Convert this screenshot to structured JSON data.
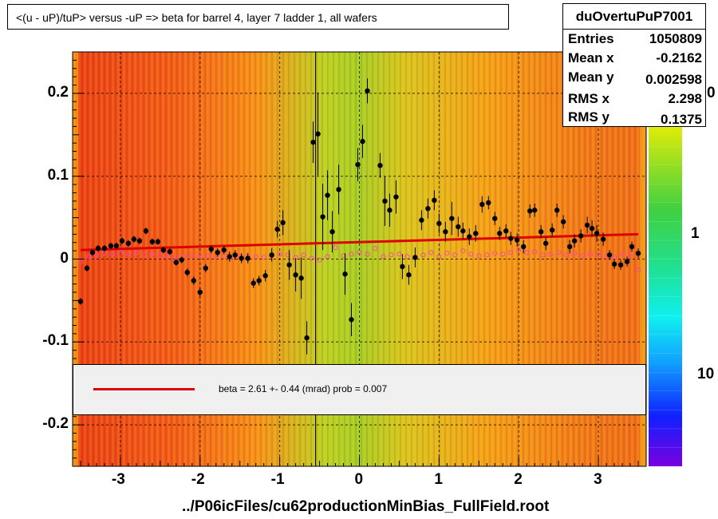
{
  "title": "<(u - uP)/tuP> versus  -uP => beta for barrel 4, layer 7 ladder 1, all wafers",
  "stats": {
    "name": "duOvertuPuP7001",
    "rows": [
      {
        "key": "Entries",
        "value": "1050809"
      },
      {
        "key": "Mean x",
        "value": "-0.2162"
      },
      {
        "key": "Mean y",
        "value": "0.002598"
      },
      {
        "key": "RMS x",
        "value": "2.298"
      },
      {
        "key": "RMS y",
        "value": "0.1375"
      }
    ]
  },
  "legend": {
    "text": "beta =    2.61 +-  0.44 (mrad) prob = 0.007",
    "line_color": "#dd0000"
  },
  "xlabel": "../P06icFiles/cu62productionMinBias_FullField.root",
  "zaxis": {
    "labels": [
      "1",
      "10"
    ],
    "partial_label": "0"
  },
  "colors": {
    "fit_line": "#dd0000",
    "profile_points": "#000000",
    "open_markers": "#ff44aa"
  },
  "chart_data": {
    "type": "scatter",
    "xlim": [
      -3.6,
      3.6
    ],
    "ylim": [
      -0.25,
      0.25
    ],
    "x_ticks": [
      "-3",
      "-2",
      "-1",
      "0",
      "1",
      "2",
      "3"
    ],
    "y_ticks": [
      "-0.2",
      "-0.1",
      "0",
      "0.1",
      "0.2"
    ],
    "grid": true,
    "z_scale": "log",
    "fit": {
      "x": [
        -3.5,
        3.5
      ],
      "y": [
        0.011,
        0.03
      ]
    },
    "series": [
      {
        "marker": "filled-circle-errorbar",
        "points": [
          {
            "x": -3.5,
            "y": -0.051,
            "e": 0.004
          },
          {
            "x": -3.42,
            "y": -0.011,
            "e": 0.004
          },
          {
            "x": -3.35,
            "y": 0.008,
            "e": 0.004
          },
          {
            "x": -3.28,
            "y": 0.013,
            "e": 0.004
          },
          {
            "x": -3.2,
            "y": 0.013,
            "e": 0.004
          },
          {
            "x": -3.12,
            "y": 0.016,
            "e": 0.004
          },
          {
            "x": -3.05,
            "y": 0.016,
            "e": 0.004
          },
          {
            "x": -2.98,
            "y": 0.022,
            "e": 0.004
          },
          {
            "x": -2.9,
            "y": 0.019,
            "e": 0.004
          },
          {
            "x": -2.83,
            "y": 0.024,
            "e": 0.004
          },
          {
            "x": -2.76,
            "y": 0.022,
            "e": 0.004
          },
          {
            "x": -2.68,
            "y": 0.034,
            "e": 0.004
          },
          {
            "x": -2.6,
            "y": 0.021,
            "e": 0.004
          },
          {
            "x": -2.53,
            "y": 0.021,
            "e": 0.004
          },
          {
            "x": -2.46,
            "y": 0.011,
            "e": 0.004
          },
          {
            "x": -2.38,
            "y": 0.009,
            "e": 0.004
          },
          {
            "x": -2.3,
            "y": -0.004,
            "e": 0.004
          },
          {
            "x": -2.23,
            "y": -0.001,
            "e": 0.004
          },
          {
            "x": -2.16,
            "y": -0.016,
            "e": 0.005
          },
          {
            "x": -2.08,
            "y": -0.026,
            "e": 0.005
          },
          {
            "x": -2.0,
            "y": -0.04,
            "e": 0.005
          },
          {
            "x": -1.93,
            "y": -0.011,
            "e": 0.005
          },
          {
            "x": -1.86,
            "y": 0.012,
            "e": 0.005
          },
          {
            "x": -1.78,
            "y": 0.008,
            "e": 0.005
          },
          {
            "x": -1.7,
            "y": 0.011,
            "e": 0.005
          },
          {
            "x": -1.63,
            "y": 0.003,
            "e": 0.006
          },
          {
            "x": -1.56,
            "y": 0.005,
            "e": 0.006
          },
          {
            "x": -1.48,
            "y": 0.001,
            "e": 0.006
          },
          {
            "x": -1.4,
            "y": 0.001,
            "e": 0.006
          },
          {
            "x": -1.33,
            "y": -0.029,
            "e": 0.006
          },
          {
            "x": -1.26,
            "y": -0.026,
            "e": 0.006
          },
          {
            "x": -1.18,
            "y": -0.02,
            "e": 0.007
          },
          {
            "x": -1.1,
            "y": 0.005,
            "e": 0.008
          },
          {
            "x": -1.03,
            "y": 0.036,
            "e": 0.01
          },
          {
            "x": -0.96,
            "y": 0.044,
            "e": 0.015
          },
          {
            "x": -0.88,
            "y": -0.007,
            "e": 0.018
          },
          {
            "x": -0.8,
            "y": -0.019,
            "e": 0.02
          },
          {
            "x": -0.73,
            "y": -0.023,
            "e": 0.025
          },
          {
            "x": -0.66,
            "y": -0.095,
            "e": 0.02
          },
          {
            "x": -0.58,
            "y": 0.141,
            "e": 0.025
          },
          {
            "x": -0.52,
            "y": 0.151,
            "e": 0.05
          },
          {
            "x": -0.46,
            "y": 0.051,
            "e": 0.04
          },
          {
            "x": -0.4,
            "y": 0.077,
            "e": 0.03
          },
          {
            "x": -0.34,
            "y": 0.033,
            "e": 0.025
          },
          {
            "x": -0.26,
            "y": 0.084,
            "e": 0.03
          },
          {
            "x": -0.18,
            "y": -0.018,
            "e": 0.025
          },
          {
            "x": -0.1,
            "y": -0.073,
            "e": 0.02
          },
          {
            "x": -0.02,
            "y": 0.114,
            "e": 0.02
          },
          {
            "x": 0.04,
            "y": 0.142,
            "e": 0.02
          },
          {
            "x": 0.1,
            "y": 0.203,
            "e": 0.015
          },
          {
            "x": 0.26,
            "y": 0.113,
            "e": 0.015
          },
          {
            "x": 0.32,
            "y": 0.07,
            "e": 0.03
          },
          {
            "x": 0.38,
            "y": 0.059,
            "e": 0.02
          },
          {
            "x": 0.46,
            "y": 0.075,
            "e": 0.02
          },
          {
            "x": 0.54,
            "y": -0.009,
            "e": 0.015
          },
          {
            "x": 0.62,
            "y": -0.019,
            "e": 0.012
          },
          {
            "x": 0.7,
            "y": 0.002,
            "e": 0.012
          },
          {
            "x": 0.78,
            "y": 0.047,
            "e": 0.012
          },
          {
            "x": 0.86,
            "y": 0.061,
            "e": 0.012
          },
          {
            "x": 0.94,
            "y": 0.071,
            "e": 0.012
          },
          {
            "x": 1.0,
            "y": 0.043,
            "e": 0.012
          },
          {
            "x": 1.08,
            "y": 0.033,
            "e": 0.012
          },
          {
            "x": 1.16,
            "y": 0.049,
            "e": 0.02
          },
          {
            "x": 1.24,
            "y": 0.039,
            "e": 0.012
          },
          {
            "x": 1.3,
            "y": 0.034,
            "e": 0.01
          },
          {
            "x": 1.38,
            "y": 0.027,
            "e": 0.01
          },
          {
            "x": 1.46,
            "y": 0.031,
            "e": 0.01
          },
          {
            "x": 1.54,
            "y": 0.066,
            "e": 0.01
          },
          {
            "x": 1.62,
            "y": 0.068,
            "e": 0.008
          },
          {
            "x": 1.7,
            "y": 0.049,
            "e": 0.008
          },
          {
            "x": 1.76,
            "y": 0.031,
            "e": 0.008
          },
          {
            "x": 1.84,
            "y": 0.034,
            "e": 0.008
          },
          {
            "x": 1.9,
            "y": 0.025,
            "e": 0.008
          },
          {
            "x": 1.98,
            "y": 0.023,
            "e": 0.008
          },
          {
            "x": 2.06,
            "y": 0.015,
            "e": 0.008
          },
          {
            "x": 2.14,
            "y": 0.058,
            "e": 0.008
          },
          {
            "x": 2.2,
            "y": 0.059,
            "e": 0.008
          },
          {
            "x": 2.28,
            "y": 0.033,
            "e": 0.008
          },
          {
            "x": 2.34,
            "y": 0.019,
            "e": 0.008
          },
          {
            "x": 2.42,
            "y": 0.035,
            "e": 0.008
          },
          {
            "x": 2.48,
            "y": 0.059,
            "e": 0.008
          },
          {
            "x": 2.56,
            "y": 0.045,
            "e": 0.008
          },
          {
            "x": 2.64,
            "y": 0.015,
            "e": 0.008
          },
          {
            "x": 2.7,
            "y": 0.022,
            "e": 0.008
          },
          {
            "x": 2.78,
            "y": 0.028,
            "e": 0.008
          },
          {
            "x": 2.86,
            "y": 0.041,
            "e": 0.01
          },
          {
            "x": 2.92,
            "y": 0.037,
            "e": 0.01
          },
          {
            "x": 2.98,
            "y": 0.031,
            "e": 0.01
          },
          {
            "x": 3.06,
            "y": 0.024,
            "e": 0.008
          },
          {
            "x": 3.14,
            "y": 0.005,
            "e": 0.006
          },
          {
            "x": 3.2,
            "y": -0.006,
            "e": 0.006
          },
          {
            "x": 3.28,
            "y": -0.007,
            "e": 0.006
          },
          {
            "x": 3.36,
            "y": -0.003,
            "e": 0.006
          },
          {
            "x": 3.42,
            "y": 0.015,
            "e": 0.006
          },
          {
            "x": 3.5,
            "y": 0.007,
            "e": 0.006
          }
        ]
      },
      {
        "marker": "open-circle",
        "points": [
          {
            "x": -3.5,
            "y": -0.003
          },
          {
            "x": -3.4,
            "y": 0.003
          },
          {
            "x": -3.3,
            "y": 0.005
          },
          {
            "x": -3.2,
            "y": 0.007
          },
          {
            "x": -3.1,
            "y": 0.006
          },
          {
            "x": -3.0,
            "y": 0.008
          },
          {
            "x": -2.9,
            "y": 0.006
          },
          {
            "x": -2.8,
            "y": 0.008
          },
          {
            "x": -2.7,
            "y": 0.005
          },
          {
            "x": -2.6,
            "y": 0.006
          },
          {
            "x": -2.5,
            "y": 0.004
          },
          {
            "x": -2.4,
            "y": 0.003
          },
          {
            "x": -2.3,
            "y": 0.002
          },
          {
            "x": -2.2,
            "y": 0.003
          },
          {
            "x": -2.1,
            "y": 0.004
          },
          {
            "x": -2.0,
            "y": 0.003
          },
          {
            "x": -1.9,
            "y": 0.004
          },
          {
            "x": -1.8,
            "y": 0.003
          },
          {
            "x": -1.7,
            "y": 0.004
          },
          {
            "x": -1.6,
            "y": 0.002
          },
          {
            "x": -1.5,
            "y": 0.003
          },
          {
            "x": -1.4,
            "y": 0.004
          },
          {
            "x": -1.3,
            "y": 0.003
          },
          {
            "x": -1.2,
            "y": 0.002
          },
          {
            "x": -1.1,
            "y": 0.004
          },
          {
            "x": -1.0,
            "y": 0.006
          },
          {
            "x": -0.9,
            "y": 0.005
          },
          {
            "x": -0.8,
            "y": 0.002
          },
          {
            "x": -0.7,
            "y": 0.005
          },
          {
            "x": -0.6,
            "y": 0.001
          },
          {
            "x": -0.5,
            "y": -0.001
          },
          {
            "x": -0.4,
            "y": 0.003
          },
          {
            "x": -0.3,
            "y": 0.014
          },
          {
            "x": -0.2,
            "y": 0.004
          },
          {
            "x": -0.1,
            "y": 0.006
          },
          {
            "x": 0.0,
            "y": 0.008
          },
          {
            "x": 0.1,
            "y": 0.006
          },
          {
            "x": 0.2,
            "y": 0.013
          },
          {
            "x": 0.3,
            "y": 0.003
          },
          {
            "x": 0.4,
            "y": 0.005
          },
          {
            "x": 0.5,
            "y": 0.006
          },
          {
            "x": 0.6,
            "y": 0.003
          },
          {
            "x": 0.7,
            "y": 0.002
          },
          {
            "x": 0.8,
            "y": 0.005
          },
          {
            "x": 0.9,
            "y": 0.008
          },
          {
            "x": 1.0,
            "y": 0.003
          },
          {
            "x": 1.1,
            "y": 0.007
          },
          {
            "x": 1.2,
            "y": 0.005
          },
          {
            "x": 1.3,
            "y": 0.01
          },
          {
            "x": 1.4,
            "y": 0.006
          },
          {
            "x": 1.5,
            "y": 0.004
          },
          {
            "x": 1.6,
            "y": 0.005
          },
          {
            "x": 1.7,
            "y": 0.007
          },
          {
            "x": 1.8,
            "y": 0.006
          },
          {
            "x": 1.9,
            "y": 0.008
          },
          {
            "x": 2.0,
            "y": 0.011
          },
          {
            "x": 2.1,
            "y": 0.008
          },
          {
            "x": 2.2,
            "y": 0.009
          },
          {
            "x": 2.3,
            "y": 0.005
          },
          {
            "x": 2.4,
            "y": 0.006
          },
          {
            "x": 2.5,
            "y": 0.008
          },
          {
            "x": 2.6,
            "y": 0.005
          },
          {
            "x": 2.7,
            "y": 0.007
          },
          {
            "x": 2.8,
            "y": 0.004
          },
          {
            "x": 2.9,
            "y": 0.006
          },
          {
            "x": 3.0,
            "y": 0.005
          },
          {
            "x": 3.1,
            "y": 0.003
          },
          {
            "x": 3.2,
            "y": 0.002
          },
          {
            "x": 3.3,
            "y": 0.006
          },
          {
            "x": 3.4,
            "y": 0.004
          },
          {
            "x": 3.5,
            "y": -0.013
          }
        ]
      }
    ]
  }
}
